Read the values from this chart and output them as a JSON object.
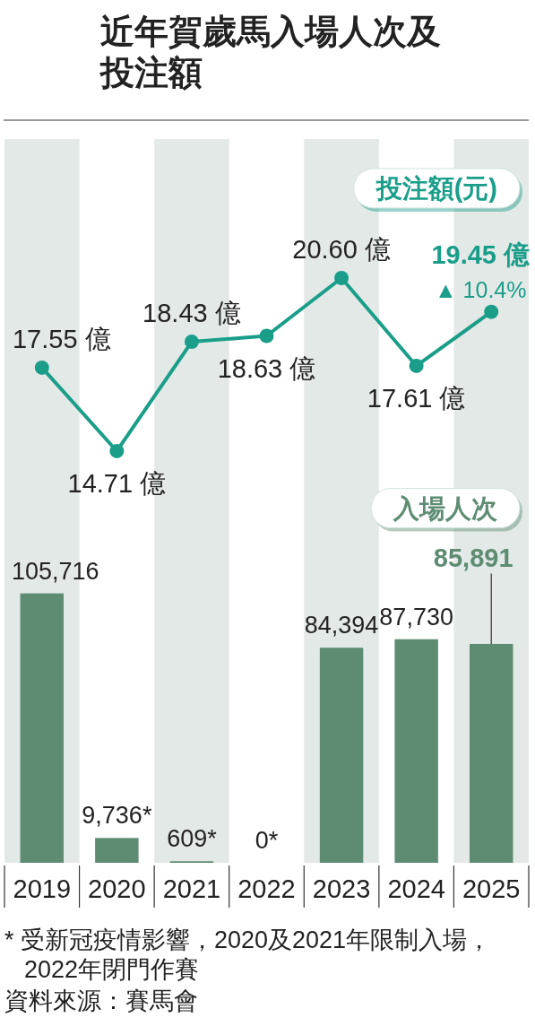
{
  "chart_data": {
    "type": "bar",
    "title": "近年賀歲馬入場人次及投注額",
    "categories": [
      "2019",
      "2020",
      "2021",
      "2022",
      "2023",
      "2024",
      "2025"
    ],
    "series": [
      {
        "name": "入場人次",
        "color": "#5e8c72",
        "values": [
          105716,
          9736,
          609,
          0,
          84394,
          87730,
          85891
        ],
        "value_labels": [
          "105,716",
          "9,736*",
          "609*",
          "0*",
          "84,394",
          "87,730",
          "85,891"
        ]
      },
      {
        "name": "投注額(元)",
        "type": "line",
        "axis": "y2",
        "color": "#1a9e8a",
        "values": [
          17.55,
          14.71,
          18.43,
          18.63,
          20.6,
          17.61,
          19.45
        ],
        "value_labels": [
          "17.55 億",
          "14.71 億",
          "18.43 億",
          "18.63 億",
          "20.60 億",
          "17.61 億",
          "19.45 億"
        ]
      }
    ],
    "ylim": [
      0,
      284000
    ],
    "y2lim": [
      0.7,
      25.33
    ],
    "tick_labels": "x",
    "marker": "circle",
    "annotations": [
      "▲ 10.4%",
      "* 受新冠疫情影響，2020及2021年限制入場，2022年閉門作賽",
      "資料來源：賽馬會"
    ]
  }
}
